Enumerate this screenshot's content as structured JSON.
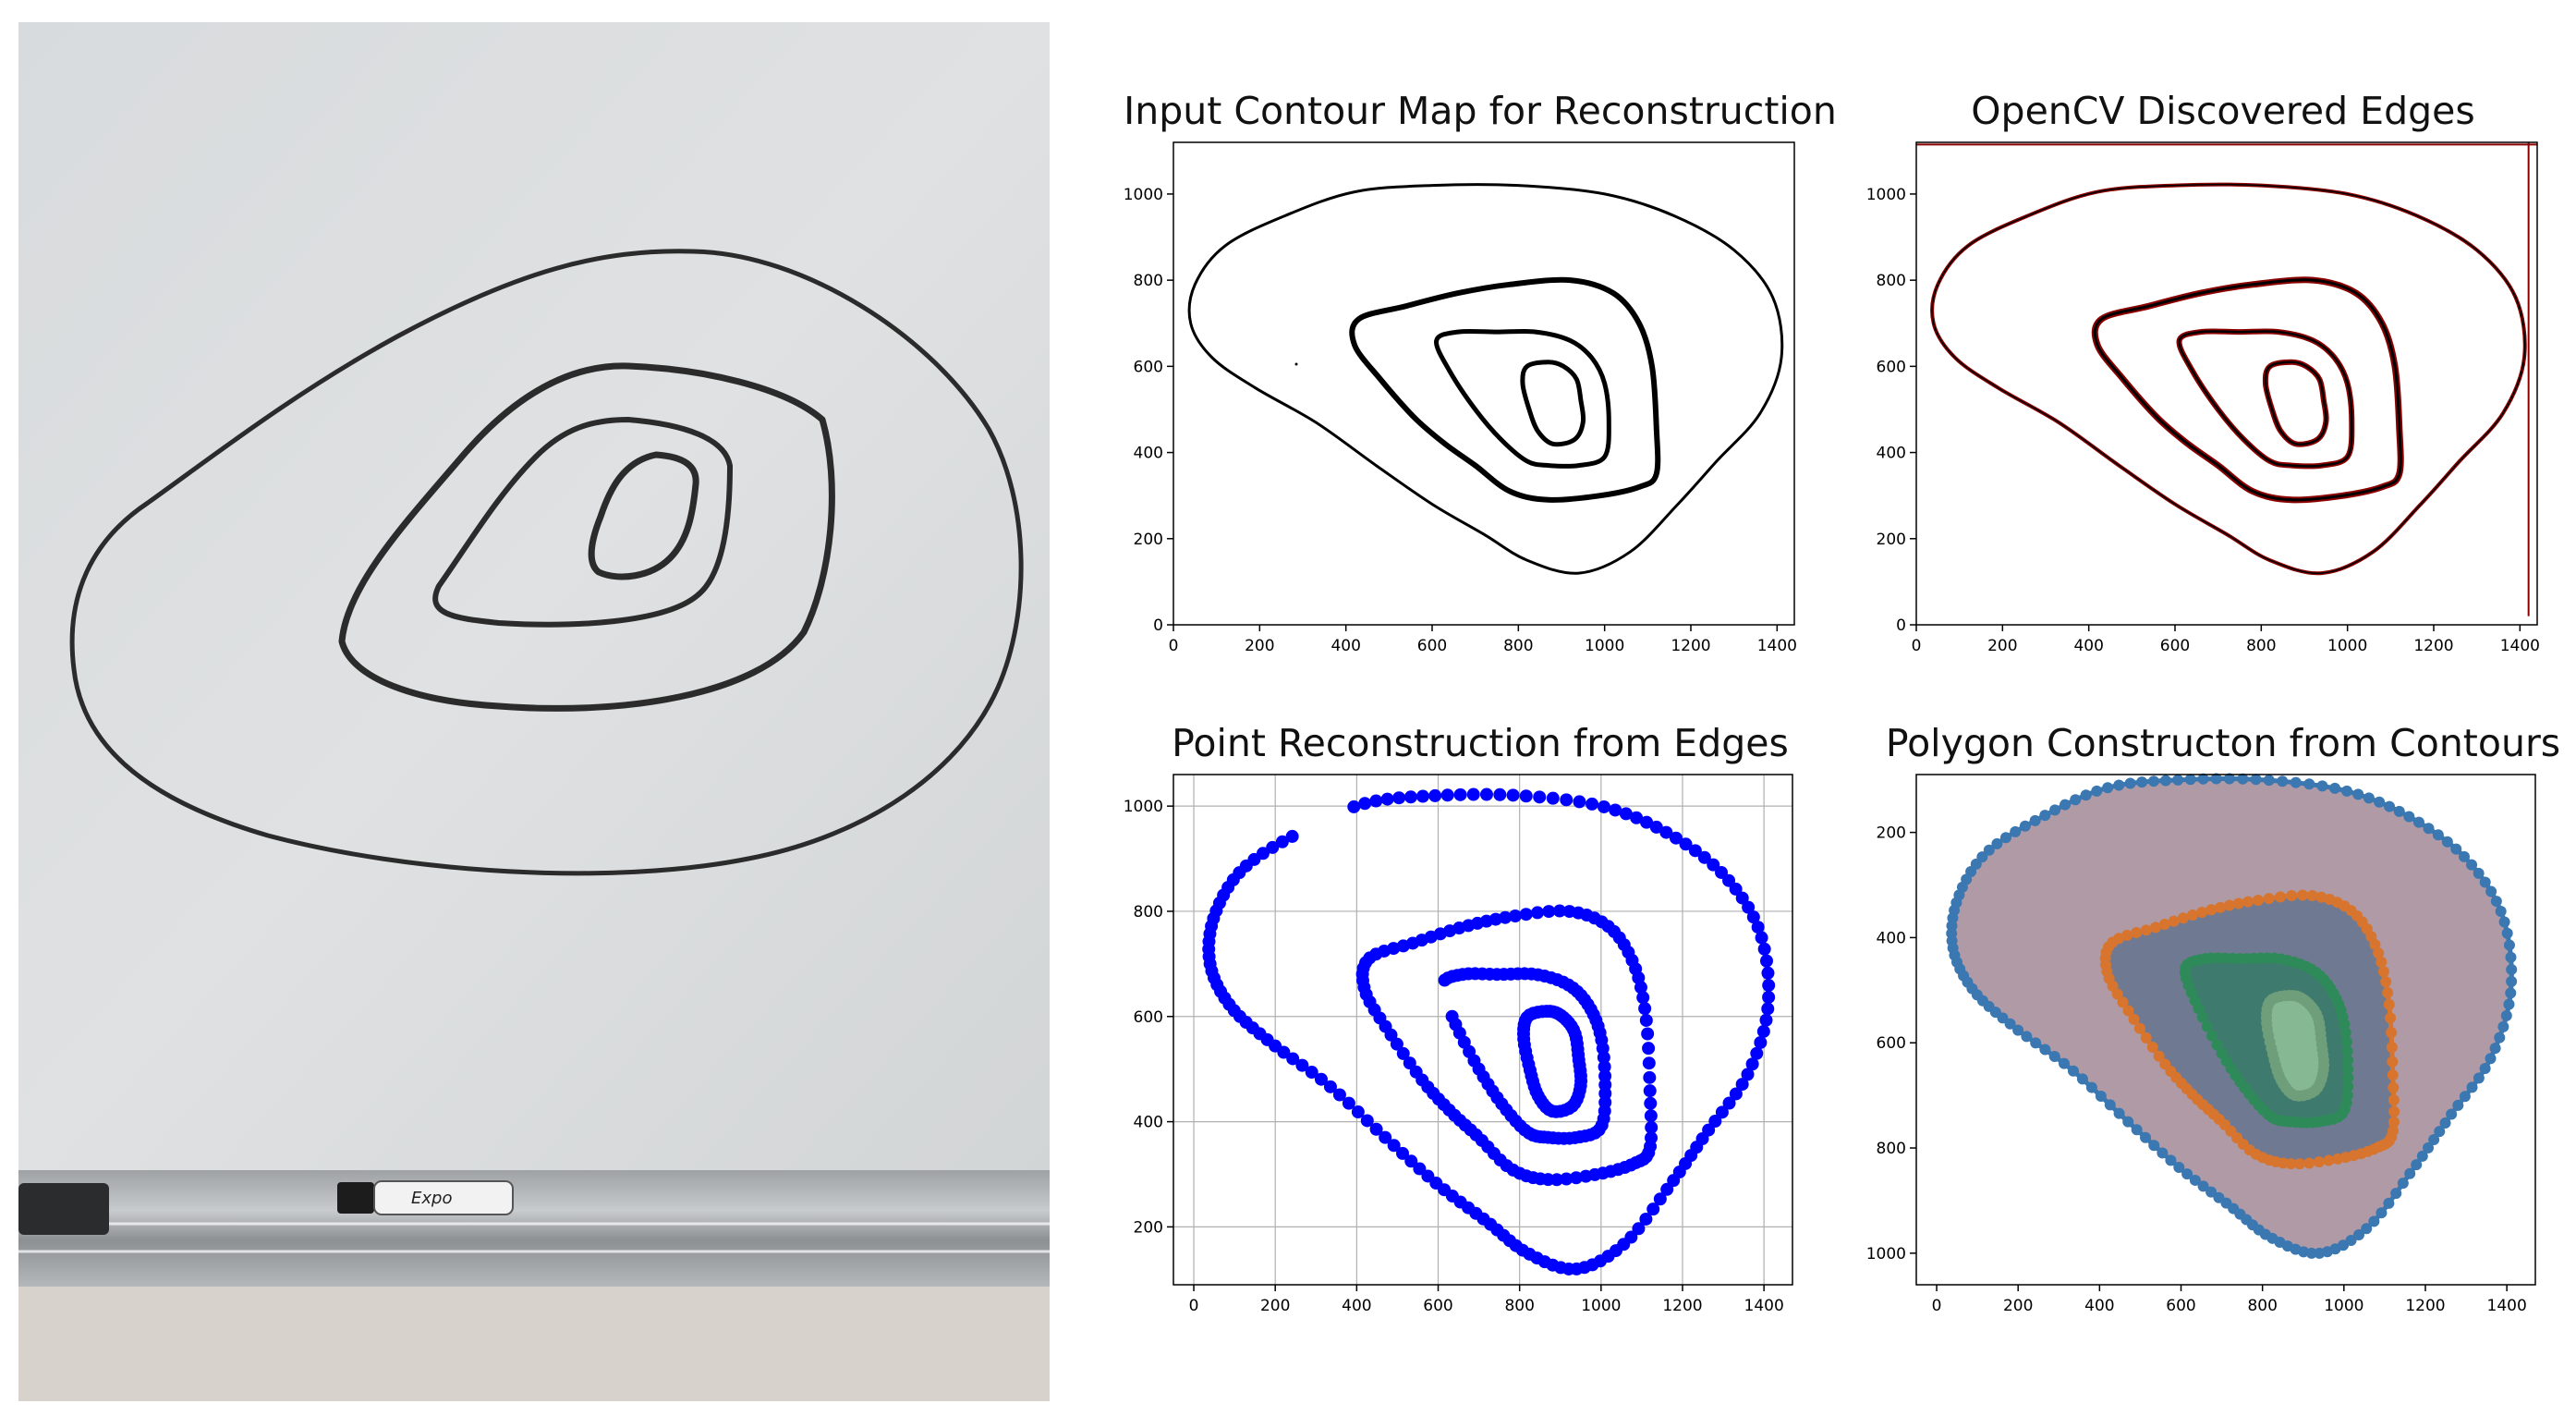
{
  "photo": {
    "description_icon": "whiteboard-photo-icon",
    "marker_label": "Expo"
  },
  "colors": {
    "axes": "#000000",
    "edges": "#8b0000",
    "points": "#0000ff",
    "outer_fill": "#b09aa5",
    "outer_edge": "#3b77b0",
    "mid_fill": "#6f7a92",
    "mid_edge": "#d7752f",
    "inner_fill": "#3f7a6e",
    "inner_edge": "#2f8a5a",
    "core_fill": "#86b894",
    "core_edge": "#6f9e7a"
  },
  "chart_data": [
    {
      "type": "image",
      "title": "Input Contour Map for Reconstruction",
      "xticks": [
        0,
        200,
        400,
        600,
        800,
        1000,
        1200,
        1400
      ],
      "yticks": [
        0,
        200,
        400,
        600,
        800,
        1000
      ],
      "xlim": [
        0,
        1440
      ],
      "ylim": [
        1120,
        0
      ],
      "grid": false
    },
    {
      "type": "image",
      "title": "OpenCV Discovered Edges",
      "xticks": [
        0,
        200,
        400,
        600,
        800,
        1000,
        1200,
        1400
      ],
      "yticks": [
        0,
        200,
        400,
        600,
        800,
        1000
      ],
      "xlim": [
        0,
        1440
      ],
      "ylim": [
        1120,
        0
      ],
      "grid": false
    },
    {
      "type": "scatter",
      "title": "Point Reconstruction from Edges",
      "xticks": [
        0,
        200,
        400,
        600,
        800,
        1000,
        1200,
        1400
      ],
      "yticks": [
        200,
        400,
        600,
        800,
        1000
      ],
      "xlim": [
        -50,
        1470
      ],
      "ylim": [
        1060,
        90
      ],
      "grid": true
    },
    {
      "type": "area",
      "title": "Polygon Constructon from Contours",
      "xticks": [
        0,
        200,
        400,
        600,
        800,
        1000,
        1200,
        1400
      ],
      "yticks": [
        200,
        400,
        600,
        800,
        1000
      ],
      "xlim": [
        -50,
        1470
      ],
      "ylim": [
        90,
        1060
      ],
      "grid": false
    }
  ]
}
